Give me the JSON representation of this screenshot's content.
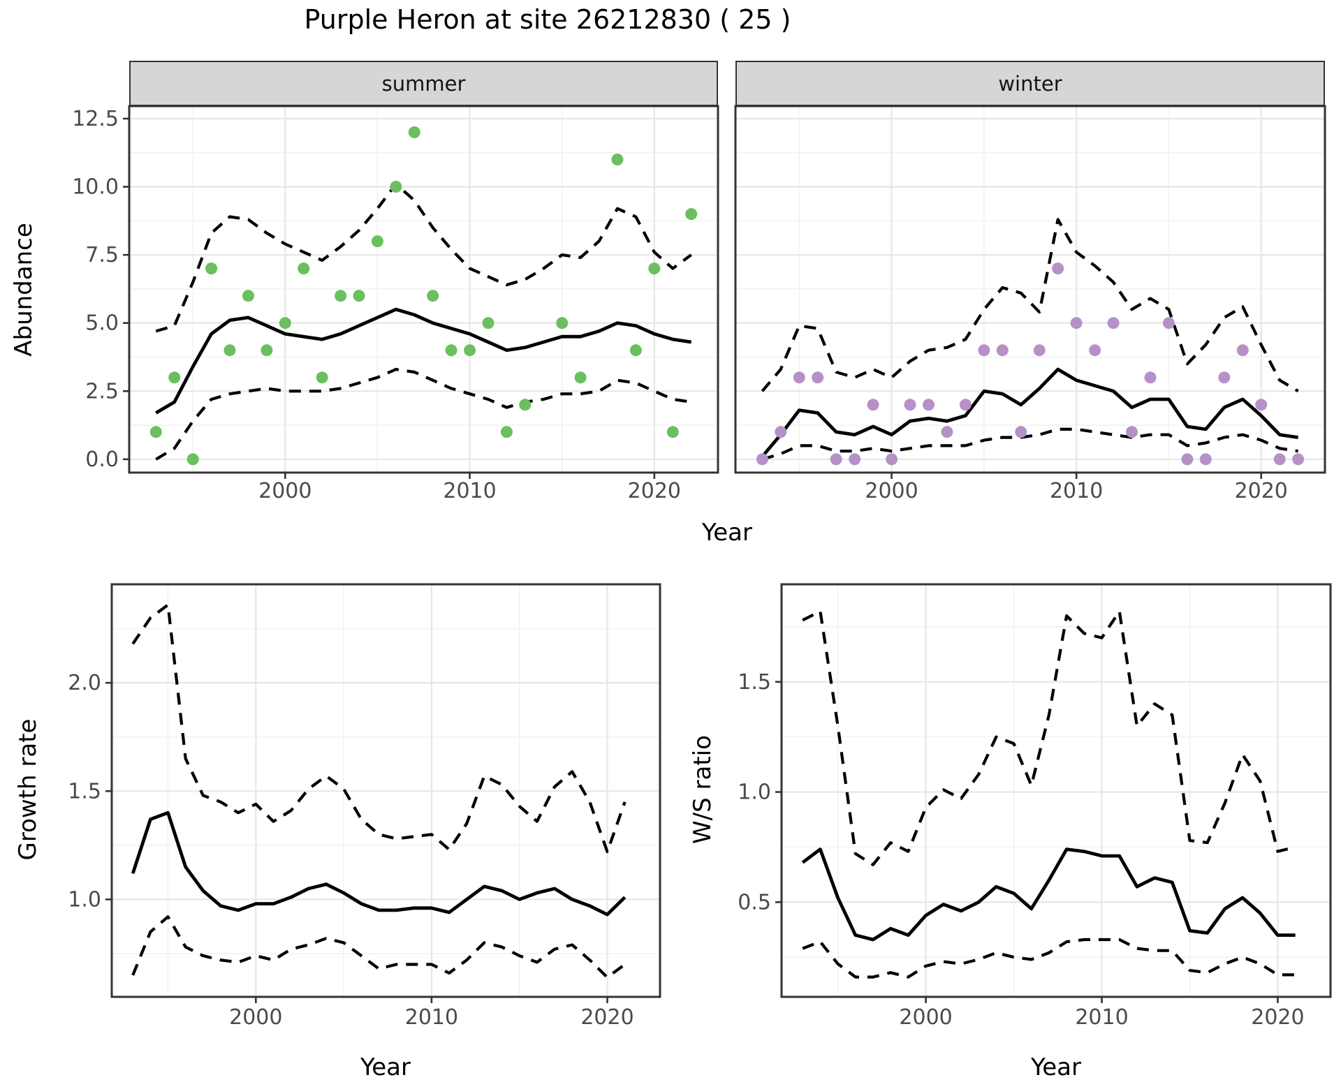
{
  "title": "Purple Heron at site 26212830 ( 25 )",
  "colors": {
    "summer_point": "#6abf5e",
    "winter_point": "#b591c8",
    "fit_line": "#000000",
    "ci_line": "#000000",
    "strip_bg": "#d6d6d6",
    "panel_border": "#333333",
    "grid_major": "#e7e7e7",
    "grid_minor": "#f1f1f1",
    "tick_text": "#4a4a4a",
    "title_text": "#000000"
  },
  "chart_data": [
    {
      "id": "abundance-summer",
      "type": "line+scatter",
      "facet": "summer",
      "xlabel": "Year",
      "ylabel": "Abundance",
      "xticks": [
        2000,
        2010,
        2020
      ],
      "xticklabels": [
        "2000",
        "2010",
        "2020"
      ],
      "yticks": [
        0.0,
        2.5,
        5.0,
        7.5,
        10.0,
        12.5
      ],
      "yticklabels": [
        "0.0",
        "2.5",
        "5.0",
        "7.5",
        "10.0",
        "12.5"
      ],
      "xlim": [
        1991.55,
        2023.45
      ],
      "ylim": [
        -0.49,
        12.96
      ],
      "grid": true,
      "legend": "none",
      "point_color": "#6abf5e",
      "x": [
        1993,
        1994,
        1995,
        1996,
        1997,
        1998,
        1999,
        2000,
        2001,
        2002,
        2003,
        2004,
        2005,
        2006,
        2007,
        2008,
        2009,
        2010,
        2011,
        2012,
        2013,
        2014,
        2015,
        2016,
        2017,
        2018,
        2019,
        2020,
        2021,
        2022
      ],
      "fit": [
        1.7,
        2.1,
        3.4,
        4.6,
        5.1,
        5.2,
        4.9,
        4.6,
        4.5,
        4.4,
        4.6,
        4.9,
        5.2,
        5.5,
        5.3,
        5.0,
        4.8,
        4.6,
        4.3,
        4.0,
        4.1,
        4.3,
        4.5,
        4.5,
        4.7,
        5.0,
        4.9,
        4.6,
        4.4,
        4.3
      ],
      "hi": [
        4.7,
        4.9,
        6.5,
        8.3,
        8.9,
        8.8,
        8.3,
        7.9,
        7.6,
        7.3,
        7.8,
        8.4,
        9.2,
        10.1,
        9.5,
        8.5,
        7.7,
        7.0,
        6.7,
        6.4,
        6.6,
        7.0,
        7.5,
        7.4,
        8.0,
        9.2,
        8.9,
        7.6,
        7.0,
        7.5
      ],
      "lo": [
        0.0,
        0.4,
        1.4,
        2.2,
        2.4,
        2.5,
        2.6,
        2.5,
        2.5,
        2.5,
        2.6,
        2.8,
        3.0,
        3.3,
        3.2,
        2.9,
        2.6,
        2.4,
        2.2,
        1.9,
        2.1,
        2.2,
        2.4,
        2.4,
        2.5,
        2.9,
        2.8,
        2.5,
        2.2,
        2.1
      ],
      "points": {
        "x": [
          1993,
          1994,
          1995,
          1996,
          1997,
          1998,
          1999,
          2000,
          2001,
          2002,
          2003,
          2004,
          2005,
          2006,
          2007,
          2008,
          2009,
          2010,
          2011,
          2012,
          2013,
          2015,
          2016,
          2018,
          2019,
          2020,
          2021,
          2022
        ],
        "y": [
          1,
          3,
          0,
          7,
          4,
          6,
          4,
          5,
          7,
          3,
          6,
          6,
          8,
          10,
          12,
          6,
          4,
          4,
          5,
          1,
          2,
          5,
          3,
          11,
          4,
          7,
          1,
          9
        ]
      }
    },
    {
      "id": "abundance-winter",
      "type": "line+scatter",
      "facet": "winter",
      "xlabel": "Year",
      "ylabel": "Abundance",
      "xticks": [
        2000,
        2010,
        2020
      ],
      "xticklabels": [
        "2000",
        "2010",
        "2020"
      ],
      "yticks": [
        0.0,
        2.5,
        5.0,
        7.5,
        10.0,
        12.5
      ],
      "yticklabels": [
        "0.0",
        "2.5",
        "5.0",
        "7.5",
        "10.0",
        "12.5"
      ],
      "xlim": [
        1991.55,
        2023.45
      ],
      "ylim": [
        -0.49,
        12.96
      ],
      "grid": true,
      "legend": "none",
      "point_color": "#b591c8",
      "x": [
        1993,
        1994,
        1995,
        1996,
        1997,
        1998,
        1999,
        2000,
        2001,
        2002,
        2003,
        2004,
        2005,
        2006,
        2007,
        2008,
        2009,
        2010,
        2011,
        2012,
        2013,
        2014,
        2015,
        2016,
        2017,
        2018,
        2019,
        2020,
        2021,
        2022
      ],
      "fit": [
        0.1,
        0.9,
        1.8,
        1.7,
        1.0,
        0.9,
        1.2,
        0.9,
        1.4,
        1.5,
        1.4,
        1.6,
        2.5,
        2.4,
        2.0,
        2.6,
        3.3,
        2.9,
        2.7,
        2.5,
        1.9,
        2.2,
        2.2,
        1.2,
        1.1,
        1.9,
        2.2,
        1.6,
        0.9,
        0.8
      ],
      "hi": [
        2.5,
        3.3,
        4.9,
        4.8,
        3.2,
        3.0,
        3.3,
        3.0,
        3.6,
        4.0,
        4.1,
        4.4,
        5.5,
        6.3,
        6.1,
        5.4,
        8.8,
        7.6,
        7.1,
        6.5,
        5.5,
        5.9,
        5.5,
        3.5,
        4.2,
        5.2,
        5.6,
        4.2,
        2.9,
        2.5
      ],
      "lo": [
        0.0,
        0.2,
        0.5,
        0.5,
        0.3,
        0.3,
        0.4,
        0.3,
        0.4,
        0.5,
        0.5,
        0.5,
        0.7,
        0.8,
        0.8,
        0.9,
        1.1,
        1.1,
        1.0,
        0.9,
        0.8,
        0.9,
        0.9,
        0.5,
        0.6,
        0.8,
        0.9,
        0.7,
        0.4,
        0.3
      ],
      "points": {
        "x": [
          1993,
          1994,
          1995,
          1996,
          1997,
          1998,
          1999,
          2000,
          2001,
          2002,
          2003,
          2004,
          2005,
          2006,
          2007,
          2008,
          2009,
          2010,
          2011,
          2012,
          2013,
          2014,
          2015,
          2016,
          2017,
          2018,
          2019,
          2020,
          2021,
          2022
        ],
        "y": [
          0,
          1,
          3,
          3,
          0,
          0,
          2,
          0,
          2,
          2,
          1,
          2,
          4,
          4,
          1,
          4,
          7,
          5,
          4,
          5,
          1,
          3,
          5,
          0,
          0,
          3,
          4,
          2,
          0,
          0
        ]
      }
    },
    {
      "id": "growth-rate",
      "type": "line",
      "facet": "",
      "xlabel": "Year",
      "ylabel": "Growth rate",
      "xticks": [
        2000,
        2010,
        2020
      ],
      "xticklabels": [
        "2000",
        "2010",
        "2020"
      ],
      "yticks": [
        1.0,
        1.5,
        2.0
      ],
      "yticklabels": [
        "1.0",
        "1.5",
        "2.0"
      ],
      "xlim": [
        1991.8,
        2023.0
      ],
      "ylim": [
        0.55,
        2.455
      ],
      "grid": true,
      "legend": "none",
      "point_color": "#000000",
      "x": [
        1993,
        1994,
        1995,
        1996,
        1997,
        1998,
        1999,
        2000,
        2001,
        2002,
        2003,
        2004,
        2005,
        2006,
        2007,
        2008,
        2009,
        2010,
        2011,
        2012,
        2013,
        2014,
        2015,
        2016,
        2017,
        2018,
        2019,
        2020,
        2021
      ],
      "fit": [
        1.12,
        1.37,
        1.4,
        1.15,
        1.04,
        0.97,
        0.95,
        0.98,
        0.98,
        1.01,
        1.05,
        1.07,
        1.03,
        0.98,
        0.95,
        0.95,
        0.96,
        0.96,
        0.94,
        1.0,
        1.06,
        1.04,
        1.0,
        1.03,
        1.05,
        1.0,
        0.97,
        0.93,
        1.01
      ],
      "hi": [
        2.18,
        2.3,
        2.36,
        1.65,
        1.48,
        1.45,
        1.4,
        1.44,
        1.36,
        1.41,
        1.51,
        1.57,
        1.51,
        1.37,
        1.3,
        1.28,
        1.29,
        1.3,
        1.23,
        1.35,
        1.57,
        1.53,
        1.43,
        1.36,
        1.52,
        1.59,
        1.45,
        1.22,
        1.45
      ],
      "lo": [
        0.65,
        0.85,
        0.92,
        0.78,
        0.74,
        0.72,
        0.71,
        0.74,
        0.72,
        0.77,
        0.79,
        0.82,
        0.8,
        0.74,
        0.68,
        0.7,
        0.7,
        0.7,
        0.66,
        0.72,
        0.8,
        0.78,
        0.74,
        0.71,
        0.77,
        0.79,
        0.72,
        0.64,
        0.7
      ],
      "points": {
        "x": [],
        "y": []
      }
    },
    {
      "id": "ws-ratio",
      "type": "line",
      "facet": "",
      "xlabel": "Year",
      "ylabel": "W/S ratio",
      "xticks": [
        2000,
        2010,
        2020
      ],
      "xticklabels": [
        "2000",
        "2010",
        "2020"
      ],
      "yticks": [
        0.5,
        1.0,
        1.5
      ],
      "yticklabels": [
        "0.5",
        "1.0",
        "1.5"
      ],
      "xlim": [
        1991.8,
        2023.0
      ],
      "ylim": [
        0.07,
        1.943
      ],
      "grid": true,
      "legend": "none",
      "point_color": "#000000",
      "x": [
        1993,
        1994,
        1995,
        1996,
        1997,
        1998,
        1999,
        2000,
        2001,
        2002,
        2003,
        2004,
        2005,
        2006,
        2007,
        2008,
        2009,
        2010,
        2011,
        2012,
        2013,
        2014,
        2015,
        2016,
        2017,
        2018,
        2019,
        2020,
        2021
      ],
      "fit": [
        0.68,
        0.74,
        0.52,
        0.35,
        0.33,
        0.38,
        0.35,
        0.44,
        0.49,
        0.46,
        0.5,
        0.57,
        0.54,
        0.47,
        0.6,
        0.74,
        0.73,
        0.71,
        0.71,
        0.57,
        0.61,
        0.59,
        0.37,
        0.36,
        0.47,
        0.52,
        0.45,
        0.35,
        0.35
      ],
      "hi": [
        1.78,
        1.82,
        1.3,
        0.72,
        0.67,
        0.77,
        0.73,
        0.93,
        1.01,
        0.97,
        1.08,
        1.25,
        1.22,
        1.03,
        1.35,
        1.8,
        1.72,
        1.7,
        1.82,
        1.3,
        1.4,
        1.35,
        0.78,
        0.77,
        0.95,
        1.17,
        1.05,
        0.73,
        0.75
      ],
      "lo": [
        0.29,
        0.32,
        0.22,
        0.16,
        0.16,
        0.18,
        0.16,
        0.21,
        0.23,
        0.22,
        0.24,
        0.27,
        0.25,
        0.24,
        0.27,
        0.32,
        0.33,
        0.33,
        0.33,
        0.29,
        0.28,
        0.28,
        0.19,
        0.18,
        0.22,
        0.25,
        0.22,
        0.17,
        0.17
      ],
      "points": {
        "x": [],
        "y": []
      }
    }
  ]
}
